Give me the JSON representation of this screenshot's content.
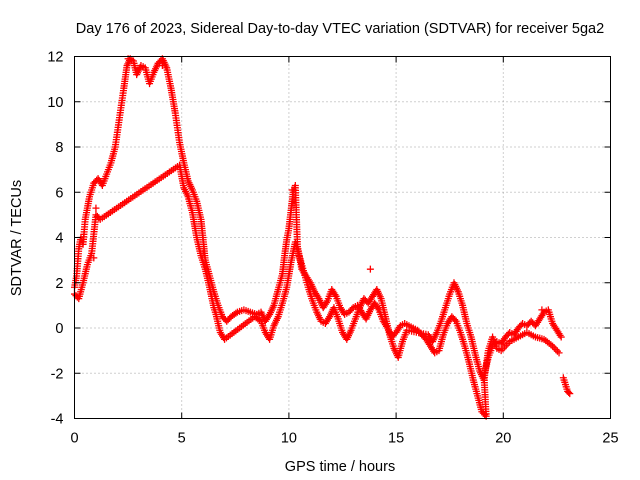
{
  "chart_data": {
    "type": "scatter",
    "title": "Day 176 of 2023, Sidereal Day-to-day VTEC variation (SDTVAR) for receiver 5ga2",
    "xlabel": "GPS time / hours",
    "ylabel": "SDTVAR / TECUs",
    "xlim": [
      0,
      25
    ],
    "ylim": [
      -4,
      12
    ],
    "xticks": [
      0,
      5,
      10,
      15,
      20,
      25
    ],
    "yticks": [
      -4,
      -2,
      0,
      2,
      4,
      6,
      8,
      10,
      12
    ],
    "grid": true,
    "marker": "+",
    "color": "#ff0000",
    "series": [
      {
        "name": "SDTVAR",
        "trace": [
          [
            0.0,
            1.8
          ],
          [
            0.1,
            2.3
          ],
          [
            0.2,
            3.5
          ],
          [
            0.3,
            4.0
          ],
          [
            0.4,
            3.7
          ],
          [
            0.5,
            4.8
          ],
          [
            0.7,
            5.8
          ],
          [
            0.9,
            6.4
          ],
          [
            1.1,
            6.6
          ],
          [
            1.3,
            6.3
          ],
          [
            1.5,
            6.8
          ],
          [
            1.7,
            7.3
          ],
          [
            1.9,
            8.0
          ],
          [
            2.1,
            9.3
          ],
          [
            2.3,
            10.6
          ],
          [
            2.45,
            11.6
          ],
          [
            2.6,
            11.9
          ],
          [
            2.75,
            11.8
          ],
          [
            2.9,
            11.2
          ],
          [
            3.1,
            11.6
          ],
          [
            3.3,
            11.5
          ],
          [
            3.5,
            10.8
          ],
          [
            3.7,
            11.3
          ],
          [
            3.9,
            11.7
          ],
          [
            4.1,
            11.9
          ],
          [
            4.3,
            11.5
          ],
          [
            4.5,
            10.6
          ],
          [
            4.7,
            9.5
          ],
          [
            4.9,
            8.2
          ],
          [
            5.1,
            7.3
          ],
          [
            5.3,
            6.5
          ],
          [
            5.5,
            6.1
          ],
          [
            5.7,
            5.6
          ],
          [
            5.9,
            4.8
          ],
          [
            6.0,
            3.9
          ],
          [
            6.1,
            3.0
          ],
          [
            6.3,
            2.3
          ],
          [
            6.5,
            1.6
          ],
          [
            6.7,
            1.0
          ],
          [
            6.9,
            0.5
          ],
          [
            7.1,
            0.3
          ],
          [
            7.3,
            0.5
          ],
          [
            7.6,
            0.7
          ],
          [
            7.9,
            0.8
          ],
          [
            8.2,
            0.7
          ],
          [
            8.5,
            0.6
          ],
          [
            8.7,
            0.7
          ],
          [
            8.9,
            0.3
          ],
          [
            9.1,
            0.6
          ],
          [
            9.3,
            1.0
          ],
          [
            9.5,
            1.7
          ],
          [
            9.7,
            2.4
          ],
          [
            9.8,
            3.2
          ],
          [
            9.9,
            3.9
          ],
          [
            10.0,
            4.4
          ],
          [
            10.1,
            5.2
          ],
          [
            10.2,
            6.0
          ],
          [
            10.3,
            6.3
          ],
          [
            10.4,
            3.6
          ],
          [
            10.6,
            2.6
          ],
          [
            10.8,
            2.3
          ],
          [
            11.0,
            2.0
          ],
          [
            11.2,
            1.6
          ],
          [
            11.4,
            1.3
          ],
          [
            11.6,
            0.9
          ],
          [
            11.8,
            1.2
          ],
          [
            12.0,
            1.7
          ],
          [
            12.2,
            1.4
          ],
          [
            12.4,
            0.9
          ],
          [
            12.6,
            0.6
          ],
          [
            12.8,
            0.7
          ],
          [
            13.0,
            0.9
          ],
          [
            13.2,
            1.0
          ],
          [
            13.4,
            0.7
          ],
          [
            13.6,
            0.4
          ],
          [
            13.8,
            0.8
          ],
          [
            14.0,
            1.1
          ],
          [
            14.2,
            0.8
          ],
          [
            14.4,
            0.3
          ],
          [
            14.6,
            0.0
          ],
          [
            14.8,
            -0.4
          ],
          [
            15.0,
            -0.2
          ],
          [
            15.2,
            0.1
          ],
          [
            15.4,
            0.2
          ],
          [
            15.6,
            0.1
          ],
          [
            15.8,
            0.0
          ],
          [
            16.0,
            -0.1
          ],
          [
            16.2,
            -0.3
          ],
          [
            16.4,
            -0.5
          ],
          [
            16.6,
            -0.8
          ],
          [
            16.8,
            -1.1
          ],
          [
            17.0,
            -1.0
          ],
          [
            17.2,
            -0.3
          ],
          [
            17.4,
            0.2
          ],
          [
            17.6,
            0.5
          ],
          [
            17.8,
            0.3
          ],
          [
            18.0,
            -0.2
          ],
          [
            18.2,
            -0.8
          ],
          [
            18.4,
            -1.5
          ],
          [
            18.6,
            -2.3
          ],
          [
            18.8,
            -3.0
          ],
          [
            19.0,
            -3.7
          ],
          [
            19.2,
            -3.9
          ],
          [
            19.1,
            -2.1
          ],
          [
            19.3,
            -1.3
          ],
          [
            19.5,
            -0.8
          ],
          [
            19.7,
            -0.6
          ],
          [
            19.9,
            -0.7
          ],
          [
            20.1,
            -0.4
          ],
          [
            20.3,
            -0.2
          ],
          [
            20.5,
            -0.3
          ],
          [
            20.7,
            0.0
          ],
          [
            20.9,
            0.2
          ],
          [
            21.1,
            0.1
          ],
          [
            21.3,
            0.3
          ],
          [
            21.5,
            0.1
          ],
          [
            21.7,
            0.4
          ],
          [
            21.9,
            0.7
          ],
          [
            22.1,
            0.8
          ],
          [
            22.3,
            0.2
          ],
          [
            22.5,
            -0.1
          ],
          [
            22.7,
            -0.4
          ]
        ],
        "trace_b": [
          [
            0.0,
            1.5
          ],
          [
            0.2,
            1.3
          ],
          [
            0.4,
            2.0
          ],
          [
            0.6,
            2.8
          ],
          [
            0.8,
            3.3
          ],
          [
            1.0,
            5.0
          ],
          [
            1.2,
            4.8
          ],
          [
            4.9,
            7.2
          ],
          [
            5.1,
            6.2
          ],
          [
            5.3,
            5.8
          ],
          [
            5.5,
            5.1
          ],
          [
            5.7,
            4.0
          ],
          [
            5.9,
            3.2
          ],
          [
            6.1,
            2.6
          ],
          [
            6.3,
            1.8
          ],
          [
            6.5,
            0.9
          ],
          [
            6.6,
            0.6
          ],
          [
            6.8,
            -0.2
          ],
          [
            7.0,
            -0.5
          ],
          [
            8.4,
            0.5
          ],
          [
            8.7,
            0.3
          ],
          [
            8.9,
            -0.2
          ],
          [
            9.1,
            -0.5
          ],
          [
            9.3,
            0.1
          ],
          [
            9.5,
            0.5
          ],
          [
            9.7,
            1.1
          ],
          [
            9.9,
            1.8
          ],
          [
            10.1,
            2.9
          ],
          [
            10.3,
            3.8
          ],
          [
            10.9,
            1.8
          ],
          [
            11.1,
            1.2
          ],
          [
            11.3,
            0.7
          ],
          [
            11.5,
            0.3
          ],
          [
            11.7,
            0.2
          ],
          [
            11.9,
            0.5
          ],
          [
            12.1,
            0.9
          ],
          [
            12.3,
            0.4
          ],
          [
            12.5,
            -0.2
          ],
          [
            12.7,
            -0.5
          ],
          [
            12.9,
            -0.1
          ],
          [
            13.1,
            0.4
          ],
          [
            13.3,
            0.9
          ],
          [
            13.5,
            1.3
          ],
          [
            13.7,
            1.1
          ],
          [
            13.9,
            1.4
          ],
          [
            14.1,
            1.7
          ],
          [
            14.3,
            1.3
          ],
          [
            14.5,
            0.5
          ],
          [
            14.7,
            -0.3
          ],
          [
            14.9,
            -0.9
          ],
          [
            15.1,
            -1.3
          ],
          [
            15.3,
            -0.6
          ],
          [
            15.5,
            -0.1
          ],
          [
            16.5,
            -0.3
          ],
          [
            16.7,
            -0.6
          ],
          [
            16.9,
            -0.2
          ],
          [
            17.1,
            0.3
          ],
          [
            17.3,
            0.9
          ],
          [
            17.5,
            1.5
          ],
          [
            17.7,
            2.0
          ],
          [
            17.9,
            1.6
          ],
          [
            18.1,
            1.0
          ],
          [
            18.3,
            0.2
          ],
          [
            18.5,
            -0.4
          ],
          [
            18.7,
            -1.2
          ],
          [
            18.9,
            -1.9
          ],
          [
            19.1,
            -2.3
          ],
          [
            19.3,
            -1.0
          ],
          [
            19.5,
            -0.4
          ],
          [
            19.7,
            -0.9
          ],
          [
            19.9,
            -1.0
          ],
          [
            20.3,
            -0.6
          ],
          [
            20.7,
            -0.4
          ],
          [
            21.1,
            -0.2
          ],
          [
            21.5,
            -0.4
          ],
          [
            21.9,
            -0.5
          ],
          [
            22.3,
            -0.8
          ],
          [
            22.6,
            -1.1
          ]
        ],
        "trace_c": [
          [
            22.8,
            -2.2
          ],
          [
            22.9,
            -2.5
          ],
          [
            23.0,
            -2.8
          ],
          [
            23.1,
            -2.9
          ]
        ],
        "points": [
          [
            13.8,
            2.6
          ],
          [
            10.15,
            6.1
          ],
          [
            1.0,
            5.3
          ],
          [
            0.9,
            3.1
          ],
          [
            6.0,
            3.3
          ],
          [
            4.1,
            11.6
          ],
          [
            2.5,
            11.9
          ],
          [
            18.1,
            1.0
          ],
          [
            19.2,
            -3.8
          ],
          [
            21.8,
            0.8
          ]
        ]
      }
    ]
  }
}
